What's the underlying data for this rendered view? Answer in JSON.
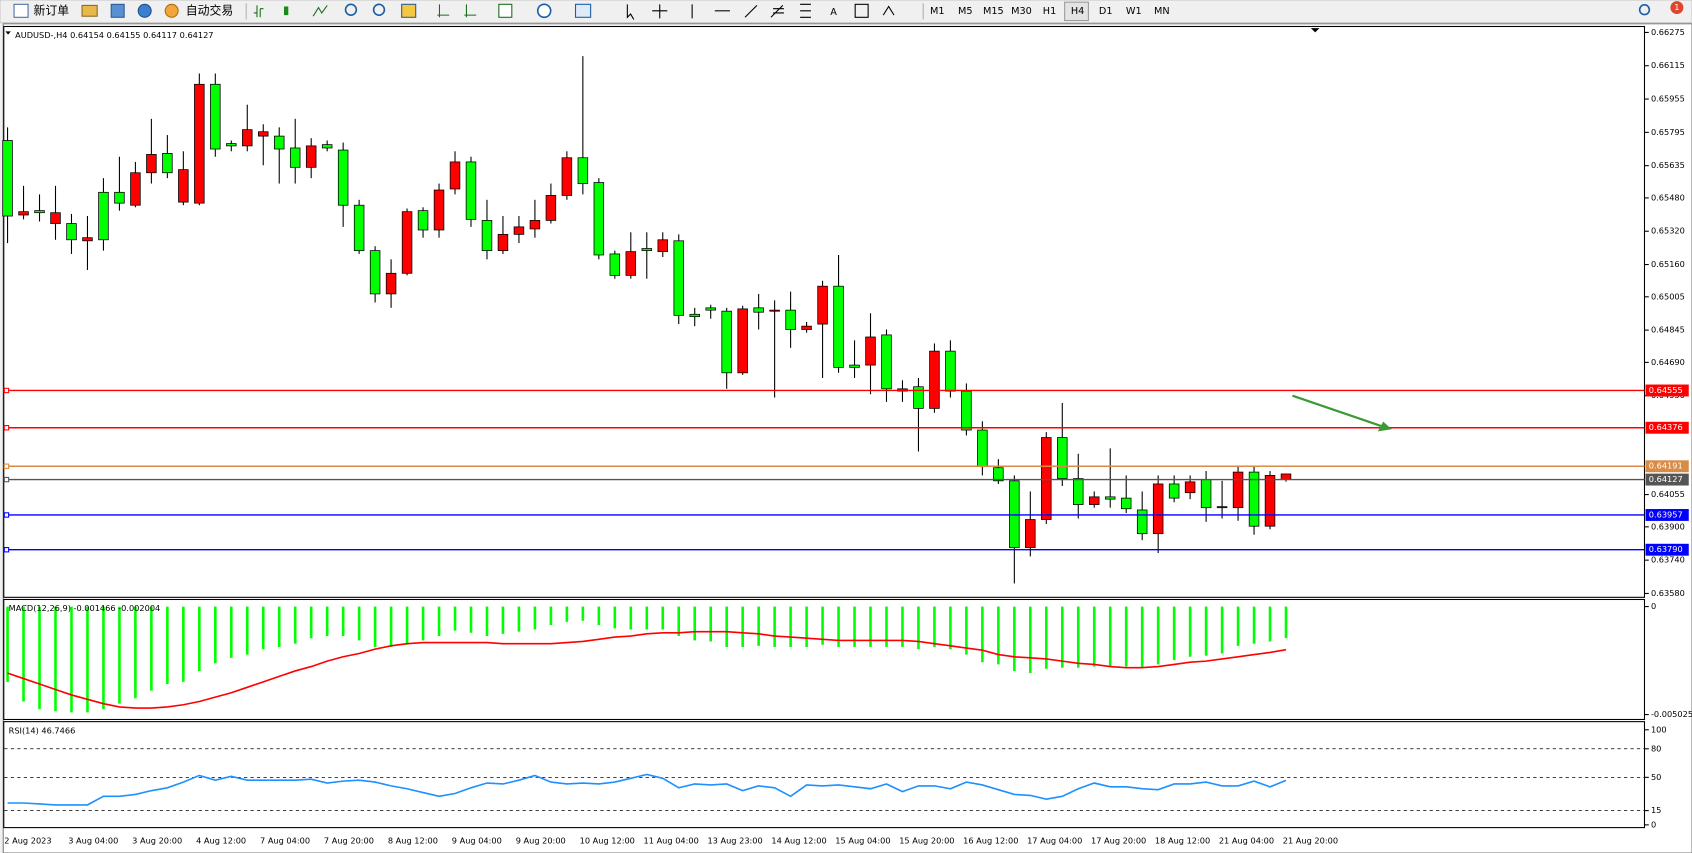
{
  "toolbar": {
    "buttons": [
      "新订单",
      "自动交易"
    ],
    "timeframes": [
      "M1",
      "M5",
      "M15",
      "M30",
      "H1",
      "H4",
      "D1",
      "W1",
      "MN"
    ],
    "notification": 1
  },
  "chart_data": [
    {
      "type": "candlestick",
      "title": "AUDUSD-,H4  0.64154 0.64155 0.64117 0.64127",
      "up_color": "#00ff00",
      "down_color": "#ff0000",
      "ylim": [
        0.63564,
        0.66301
      ],
      "yticks": [
        0.66275,
        0.66115,
        0.65955,
        0.65795,
        0.65635,
        {
          "value": 0.6548,
          "label": "0.65480"
        },
        {
          "value": 0.6532,
          "label": "0.65320"
        },
        {
          "value": 0.6516,
          "label": "0.65160"
        },
        0.65005,
        0.64845,
        {
          "value": 0.6469,
          "label": "0.64690"
        },
        {
          "value": 0.6453,
          "label": "0.64530"
        },
        0.64055,
        {
          "value": 0.639,
          "label": "0.63900"
        },
        {
          "value": 0.6374,
          "label": "0.63740"
        },
        {
          "value": 0.6358,
          "label": "0.63580"
        }
      ],
      "hlines": [
        {
          "value": 0.64555,
          "color": "#ff0000"
        },
        {
          "value": 0.64376,
          "color": "#ff0000"
        },
        {
          "value": 0.64191,
          "color": "#d98a45"
        },
        {
          "value": 0.64127,
          "color": "#555555"
        },
        {
          "value": 0.63957,
          "color": "#0000ff"
        },
        {
          "value": 0.6379,
          "label": "0.63790",
          "color": "#0000ff"
        }
      ],
      "categories": [
        "2 Aug 2023",
        null,
        null,
        null,
        "3 Aug 04:00",
        null,
        null,
        null,
        "3 Aug 20:00",
        null,
        null,
        null,
        "4 Aug 12:00",
        null,
        null,
        null,
        "7 Aug 04:00",
        null,
        null,
        null,
        "7 Aug 20:00",
        null,
        null,
        null,
        "8 Aug 12:00",
        null,
        null,
        null,
        "9 Aug 04:00",
        null,
        null,
        null,
        "9 Aug 20:00",
        null,
        null,
        null,
        "10 Aug 12:00",
        null,
        null,
        null,
        "11 Aug 04:00",
        null,
        null,
        null,
        "13 Aug 23:00",
        null,
        null,
        null,
        "14 Aug 12:00",
        null,
        null,
        null,
        "15 Aug 04:00",
        null,
        null,
        null,
        "15 Aug 20:00",
        null,
        null,
        null,
        "16 Aug 12:00",
        null,
        null,
        null,
        "17 Aug 04:00",
        null,
        null,
        null,
        "17 Aug 20:00",
        null,
        null,
        null,
        "18 Aug 12:00",
        null,
        null,
        null,
        "21 Aug 04:00",
        null,
        null,
        null,
        "21 Aug 20:00"
      ],
      "open": [
        0.65393,
        0.65414,
        0.65409,
        0.65409,
        0.65279,
        0.65289,
        0.65279,
        0.65455,
        0.65601,
        0.65689,
        0.65601,
        0.65616,
        0.66026,
        0.65715,
        0.6573,
        0.65808,
        0.65798,
        0.65715,
        0.65627,
        0.6573,
        0.6572,
        0.65445,
        0.65227,
        0.65019,
        0.65118,
        0.65414,
        0.65326,
        0.65518,
        0.65653,
        0.65377,
        0.65227,
        0.65305,
        0.65341,
        0.65372,
        0.65492,
        0.65673,
        0.65549,
        0.65206,
        0.65108,
        0.65222,
        0.65227,
        0.65279,
        0.64916,
        0.6491,
        0.64941,
        0.6464,
        0.64947,
        0.64931,
        0.64941,
        0.64848,
        0.64864,
        0.65056,
        0.64666,
        0.64666,
        0.64812,
        0.64563,
        0.64563,
        0.64469,
        0.64744,
        0.64552,
        0.64365,
        0.64189,
        0.64121,
        0.638,
        0.63935,
        0.64329,
        0.64132,
        0.64007,
        0.64044,
        0.64033,
        0.63987,
        0.63867,
        0.64106,
        0.64038,
        0.64116,
        0.63992,
        0.63997,
        0.64163,
        0.63903,
        0.64147,
        0.64154
      ],
      "high": [
        0.65819,
        0.65538,
        0.65497,
        0.65538,
        0.65403,
        0.65393,
        0.65575,
        0.65678,
        0.65653,
        0.6586,
        0.65782,
        0.65704,
        0.66078,
        0.66078,
        0.65756,
        0.65928,
        0.65834,
        0.65819,
        0.6586,
        0.65767,
        0.65756,
        0.65746,
        0.65471,
        0.65248,
        0.65185,
        0.65429,
        0.65435,
        0.65549,
        0.65704,
        0.65678,
        0.65471,
        0.65393,
        0.65393,
        0.65471,
        0.65549,
        0.65704,
        0.66161,
        0.65575,
        0.65227,
        0.65315,
        0.65315,
        0.65315,
        0.65305,
        0.64952,
        0.64967,
        0.64952,
        0.64962,
        0.65019,
        0.64988,
        0.6503,
        0.64884,
        0.65082,
        0.65206,
        0.64796,
        0.64926,
        0.64848,
        0.64604,
        0.64615,
        0.64781,
        0.64796,
        0.64589,
        0.64407,
        0.64225,
        0.64147,
        0.6407,
        0.64355,
        0.64495,
        0.64251,
        0.6407,
        0.64277,
        0.64147,
        0.6407,
        0.64147,
        0.64147,
        0.64147,
        0.64168,
        0.64121,
        0.64189,
        0.64189,
        0.64168,
        0.64155
      ],
      "low": [
        0.65263,
        0.65377,
        0.65367,
        0.65279,
        0.65211,
        0.65134,
        0.65227,
        0.65419,
        0.65435,
        0.65549,
        0.65575,
        0.65445,
        0.65445,
        0.65678,
        0.65704,
        0.65704,
        0.65637,
        0.65549,
        0.65549,
        0.65575,
        0.65704,
        0.65341,
        0.65211,
        0.64978,
        0.64952,
        0.65108,
        0.65289,
        0.65289,
        0.65497,
        0.65341,
        0.65185,
        0.65211,
        0.65263,
        0.65289,
        0.65357,
        0.65471,
        0.65497,
        0.65185,
        0.65092,
        0.65092,
        0.65092,
        0.65196,
        0.64874,
        0.64864,
        0.649,
        0.64563,
        0.6463,
        0.64848,
        0.64521,
        0.6476,
        0.64833,
        0.64615,
        0.6464,
        0.64615,
        0.64537,
        0.645,
        0.645,
        0.64262,
        0.64448,
        0.64521,
        0.64339,
        0.64147,
        0.64106,
        0.63628,
        0.63758,
        0.63914,
        0.64096,
        0.6394,
        0.63992,
        0.63992,
        0.63966,
        0.63836,
        0.63774,
        0.64018,
        0.64033,
        0.63924,
        0.6394,
        0.63929,
        0.63862,
        0.63888,
        0.64117
      ],
      "close": [
        0.65756,
        0.65398,
        0.65419,
        0.65357,
        0.65357,
        0.65274,
        0.65507,
        0.65507,
        0.65445,
        0.65601,
        0.65694,
        0.6546,
        0.65455,
        0.66026,
        0.65741,
        0.6573,
        0.65777,
        0.65777,
        0.6572,
        0.65627,
        0.65736,
        0.6571,
        0.65445,
        0.65227,
        0.65019,
        0.65118,
        0.65419,
        0.65326,
        0.65523,
        0.65653,
        0.65372,
        0.65227,
        0.65305,
        0.65331,
        0.65372,
        0.65492,
        0.65673,
        0.65554,
        0.65211,
        0.65108,
        0.65237,
        0.65222,
        0.65274,
        0.64921,
        0.64952,
        0.64936,
        0.6464,
        0.64952,
        0.64936,
        0.64941,
        0.64848,
        0.64874,
        0.65056,
        0.64677,
        0.64677,
        0.64822,
        0.64552,
        0.64573,
        0.64469,
        0.64744,
        0.64552,
        0.64365,
        0.64184,
        0.64121,
        0.638,
        0.63935,
        0.64329,
        0.64132,
        0.64007,
        0.64044,
        0.64038,
        0.63981,
        0.63867,
        0.64106,
        0.64064,
        0.64127,
        0.63992,
        0.63992,
        0.64163,
        0.63903,
        0.64127
      ]
    },
    {
      "type": "macd",
      "title": "MACD(12,26,9) -0.001466 -0.002004",
      "ylim": [
        -0.005228,
        0.000305
      ],
      "yticks": [
        0,
        -0.005025
      ],
      "series": [
        {
          "type": "bar",
          "color": "#00ff00",
          "values": [
            -0.003502,
            -0.004416,
            -0.004771,
            -0.004873,
            -0.004924,
            -0.004924,
            -0.004771,
            -0.004518,
            -0.004264,
            -0.003909,
            -0.003604,
            -0.003502,
            -0.002995,
            -0.00264,
            -0.002386,
            -0.002233,
            -0.00198,
            -0.001878,
            -0.001726,
            -0.001472,
            -0.001371,
            -0.001371,
            -0.001574,
            -0.001878,
            -0.001878,
            -0.001777,
            -0.001574,
            -0.001371,
            -0.001117,
            -0.001218,
            -0.001371,
            -0.001269,
            -0.001167,
            -0.001066,
            -0.000863,
            -0.000711,
            -0.00066,
            -0.000863,
            -0.001015,
            -0.001066,
            -0.001066,
            -0.001066,
            -0.001371,
            -0.001574,
            -0.001624,
            -0.001878,
            -0.001878,
            -0.001827,
            -0.001878,
            -0.001878,
            -0.001878,
            -0.001777,
            -0.001878,
            -0.001878,
            -0.001878,
            -0.001878,
            -0.001878,
            -0.00198,
            -0.001878,
            -0.00198,
            -0.002233,
            -0.002589,
            -0.00269,
            -0.002995,
            -0.003096,
            -0.002893,
            -0.002843,
            -0.002843,
            -0.002792,
            -0.002792,
            -0.002792,
            -0.002843,
            -0.00269,
            -0.002487,
            -0.002335,
            -0.002284,
            -0.002183,
            -0.001827,
            -0.001726,
            -0.001624,
            -0.001466
          ]
        },
        {
          "type": "line",
          "color": "#ff0000",
          "values": [
            -0.003096,
            -0.00335,
            -0.003604,
            -0.003858,
            -0.004112,
            -0.004315,
            -0.004518,
            -0.00467,
            -0.004721,
            -0.004721,
            -0.00467,
            -0.004568,
            -0.004416,
            -0.004213,
            -0.00401,
            -0.003756,
            -0.003502,
            -0.003249,
            -0.002995,
            -0.002792,
            -0.002538,
            -0.002335,
            -0.002183,
            -0.00198,
            -0.001827,
            -0.001726,
            -0.001675,
            -0.001675,
            -0.001675,
            -0.001675,
            -0.001675,
            -0.001726,
            -0.001726,
            -0.001726,
            -0.001726,
            -0.001675,
            -0.001624,
            -0.001523,
            -0.001421,
            -0.001371,
            -0.001269,
            -0.001218,
            -0.001218,
            -0.001167,
            -0.001167,
            -0.001167,
            -0.001218,
            -0.001269,
            -0.001371,
            -0.001421,
            -0.001472,
            -0.001523,
            -0.001574,
            -0.001574,
            -0.001574,
            -0.001574,
            -0.001574,
            -0.001624,
            -0.001726,
            -0.001827,
            -0.001929,
            -0.00203,
            -0.002233,
            -0.002335,
            -0.002386,
            -0.002436,
            -0.002538,
            -0.00264,
            -0.00269,
            -0.002792,
            -0.002843,
            -0.002843,
            -0.002792,
            -0.00269,
            -0.002589,
            -0.002538,
            -0.002436,
            -0.002335,
            -0.002233,
            -0.002132,
            -0.002004
          ]
        }
      ]
    },
    {
      "type": "line",
      "title": "RSI(14) 46.7466",
      "level_lines": true,
      "ylim": [
        -2.3,
        108
      ],
      "yticks": [
        100,
        80,
        50,
        15,
        0
      ],
      "series": [
        {
          "color": "#1e90ff",
          "values": [
            23,
            23,
            22,
            21,
            21,
            21,
            30,
            30,
            32,
            36,
            39,
            45,
            52,
            47,
            51,
            47,
            47,
            47,
            47,
            48,
            44,
            46,
            47,
            45,
            41,
            38,
            34,
            30,
            33,
            39,
            44,
            43,
            47,
            52,
            45,
            43,
            44,
            43,
            45,
            49,
            53,
            49,
            39,
            43,
            42,
            43,
            36,
            41,
            39,
            30,
            42,
            41,
            42,
            40,
            38,
            43,
            35,
            41,
            41,
            38,
            45,
            42,
            37,
            32,
            31,
            27,
            30,
            38,
            44,
            40,
            40,
            38,
            37,
            43,
            43,
            45,
            41,
            41,
            46,
            40,
            46.7466
          ]
        }
      ]
    }
  ]
}
